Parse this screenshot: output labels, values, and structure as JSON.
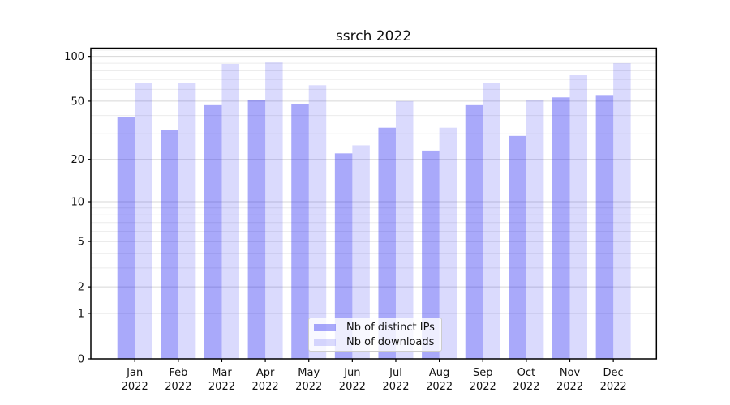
{
  "figure": {
    "background": "#ffffff"
  },
  "chart_data": {
    "type": "bar",
    "title": "ssrch 2022",
    "categories": [
      "Jan",
      "Feb",
      "Mar",
      "Apr",
      "May",
      "Jun",
      "Jul",
      "Aug",
      "Sep",
      "Oct",
      "Nov",
      "Dec"
    ],
    "year_label": "2022",
    "series": [
      {
        "name": "Nb of distinct IPs",
        "color": "rgba(10,10,240,0.35)",
        "values": [
          39,
          32,
          47,
          51,
          48,
          22,
          33,
          23,
          47,
          29,
          53,
          55
        ]
      },
      {
        "name": "Nb of downloads",
        "color": "rgba(10,10,240,0.15)",
        "values": [
          66,
          66,
          89,
          91,
          64,
          25,
          50,
          33,
          66,
          51,
          75,
          90
        ]
      }
    ],
    "xlabel": "",
    "ylabel": "",
    "yscale": "log1p",
    "ylim": [
      0,
      113
    ],
    "yticks": [
      0,
      1,
      2,
      5,
      10,
      20,
      50,
      100
    ],
    "ytick_labels": [
      "0",
      "1",
      "2",
      "5",
      "10",
      "20",
      "50",
      "100"
    ],
    "minor_yticks": [
      3,
      4,
      6,
      7,
      8,
      9,
      30,
      40,
      60,
      70,
      80,
      90,
      110
    ],
    "grid": "horizontal",
    "legend_position": "lower center",
    "colors": {
      "major_grid": "#d7d7d7",
      "minor_grid": "#ececec",
      "axis": "#000000",
      "tick_text": "#111111"
    }
  }
}
